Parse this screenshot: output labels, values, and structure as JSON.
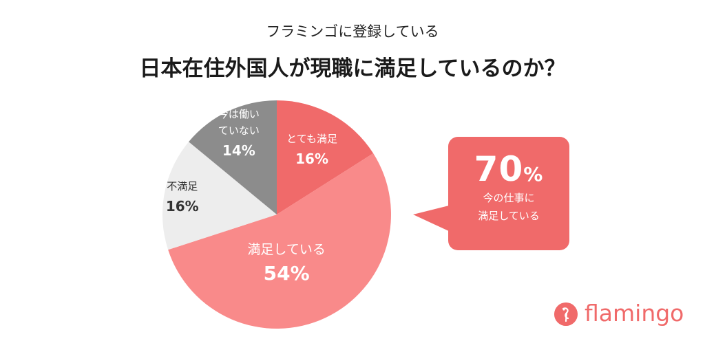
{
  "header": {
    "subtitle": "フラミンゴに登録している",
    "title": "日本在住外国人が現職に満足しているのか？"
  },
  "chart_data": {
    "type": "pie",
    "slices": [
      {
        "label": "とても満足",
        "label_lines": [
          "とても満足"
        ],
        "value": 16,
        "value_label": "16%",
        "color": "#f06a6a",
        "text_color": "#ffffff"
      },
      {
        "label": "満足している",
        "label_lines": [
          "満足している"
        ],
        "value": 54,
        "value_label": "54%",
        "color": "#f98a8a",
        "text_color": "#ffffff"
      },
      {
        "label": "不満足",
        "label_lines": [
          "不満足"
        ],
        "value": 16,
        "value_label": "16%",
        "color": "#ededed",
        "text_color": "#333333"
      },
      {
        "label": "今は働いていない",
        "label_lines": [
          "今は働い",
          "ていない"
        ],
        "value": 14,
        "value_label": "14%",
        "color": "#8c8c8c",
        "text_color": "#ffffff"
      }
    ],
    "start_direction": "top",
    "direction": "clockwise",
    "legend": "none"
  },
  "callout": {
    "value": "70",
    "unit": "%",
    "lines": [
      "今の仕事に",
      "満足している"
    ],
    "color": "#f06a6a"
  },
  "logo": {
    "text": "flamingo",
    "icon": "flamingo-logo-icon",
    "color": "#f06a6a"
  }
}
